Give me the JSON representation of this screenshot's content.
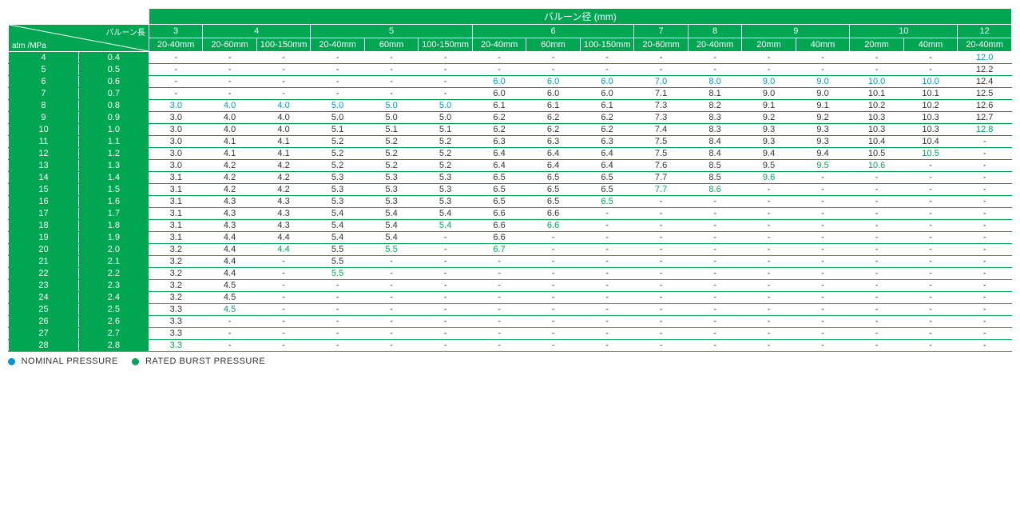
{
  "colors": {
    "header_bg": "#00a651",
    "header_fg": "#ffffff",
    "data_fg": "#333333",
    "nominal": "#0099cc",
    "rated_burst": "#00a651",
    "row_border": "#00a651"
  },
  "title": "バルーン径 (mm)",
  "diag_top": "バルーン長",
  "diag_bottom": "atm /MPa",
  "diameter_groups": [
    {
      "label": "3",
      "cols": [
        "20-40mm"
      ]
    },
    {
      "label": "4",
      "cols": [
        "20-60mm",
        "100-150mm"
      ]
    },
    {
      "label": "5",
      "cols": [
        "20-40mm",
        "60mm",
        "100-150mm"
      ]
    },
    {
      "label": "6",
      "cols": [
        "20-40mm",
        "60mm",
        "100-150mm"
      ]
    },
    {
      "label": "7",
      "cols": [
        "20-60mm"
      ]
    },
    {
      "label": "8",
      "cols": [
        "20-40mm"
      ]
    },
    {
      "label": "9",
      "cols": [
        "20mm",
        "40mm"
      ]
    },
    {
      "label": "10",
      "cols": [
        "20mm",
        "40mm"
      ]
    },
    {
      "label": "12",
      "cols": [
        "20-40mm"
      ]
    }
  ],
  "rows": [
    {
      "atm": "4",
      "mpa": "0.4",
      "cells": [
        [
          "-"
        ],
        [
          "-"
        ],
        [
          "-"
        ],
        [
          "-"
        ],
        [
          "-"
        ],
        [
          "-"
        ],
        [
          "-"
        ],
        [
          "-"
        ],
        [
          "-"
        ],
        [
          "-"
        ],
        [
          "-"
        ],
        [
          "-"
        ],
        [
          "-"
        ],
        [
          "-"
        ],
        [
          "-"
        ],
        [
          "12.0",
          "nom"
        ]
      ]
    },
    {
      "atm": "5",
      "mpa": "0.5",
      "cells": [
        [
          "-"
        ],
        [
          "-"
        ],
        [
          "-"
        ],
        [
          "-"
        ],
        [
          "-"
        ],
        [
          "-"
        ],
        [
          "-"
        ],
        [
          "-"
        ],
        [
          "-"
        ],
        [
          "-"
        ],
        [
          "-"
        ],
        [
          "-"
        ],
        [
          "-"
        ],
        [
          "-"
        ],
        [
          "-"
        ],
        [
          "12.2"
        ]
      ]
    },
    {
      "atm": "6",
      "mpa": "0.6",
      "cells": [
        [
          "-"
        ],
        [
          "-"
        ],
        [
          "-"
        ],
        [
          "-"
        ],
        [
          "-"
        ],
        [
          "-"
        ],
        [
          "6.0",
          "nom"
        ],
        [
          "6.0",
          "nom"
        ],
        [
          "6.0",
          "nom"
        ],
        [
          "7.0",
          "nom"
        ],
        [
          "8.0",
          "nom"
        ],
        [
          "9.0",
          "nom"
        ],
        [
          "9.0",
          "nom"
        ],
        [
          "10.0",
          "nom"
        ],
        [
          "10.0",
          "nom"
        ],
        [
          "12.4"
        ]
      ]
    },
    {
      "atm": "7",
      "mpa": "0.7",
      "cells": [
        [
          "-"
        ],
        [
          "-"
        ],
        [
          "-"
        ],
        [
          "-"
        ],
        [
          "-"
        ],
        [
          "-"
        ],
        [
          "6.0"
        ],
        [
          "6.0"
        ],
        [
          "6.0"
        ],
        [
          "7.1"
        ],
        [
          "8.1"
        ],
        [
          "9.0"
        ],
        [
          "9.0"
        ],
        [
          "10.1"
        ],
        [
          "10.1"
        ],
        [
          "12.5"
        ]
      ]
    },
    {
      "atm": "8",
      "mpa": "0.8",
      "cells": [
        [
          "3.0",
          "nom"
        ],
        [
          "4.0",
          "nom"
        ],
        [
          "4.0",
          "nom"
        ],
        [
          "5.0",
          "nom"
        ],
        [
          "5.0",
          "nom"
        ],
        [
          "5.0",
          "nom"
        ],
        [
          "6.1"
        ],
        [
          "6.1"
        ],
        [
          "6.1"
        ],
        [
          "7.3"
        ],
        [
          "8.2"
        ],
        [
          "9.1"
        ],
        [
          "9.1"
        ],
        [
          "10.2"
        ],
        [
          "10.2"
        ],
        [
          "12.6"
        ]
      ]
    },
    {
      "atm": "9",
      "mpa": "0.9",
      "cells": [
        [
          "3.0"
        ],
        [
          "4.0"
        ],
        [
          "4.0"
        ],
        [
          "5.0"
        ],
        [
          "5.0"
        ],
        [
          "5.0"
        ],
        [
          "6.2"
        ],
        [
          "6.2"
        ],
        [
          "6.2"
        ],
        [
          "7.3"
        ],
        [
          "8.3"
        ],
        [
          "9.2"
        ],
        [
          "9.2"
        ],
        [
          "10.3"
        ],
        [
          "10.3"
        ],
        [
          "12.7"
        ]
      ]
    },
    {
      "atm": "10",
      "mpa": "1.0",
      "cells": [
        [
          "3.0"
        ],
        [
          "4.0"
        ],
        [
          "4.0"
        ],
        [
          "5.1"
        ],
        [
          "5.1"
        ],
        [
          "5.1"
        ],
        [
          "6.2"
        ],
        [
          "6.2"
        ],
        [
          "6.2"
        ],
        [
          "7.4"
        ],
        [
          "8.3"
        ],
        [
          "9.3"
        ],
        [
          "9.3"
        ],
        [
          "10.3"
        ],
        [
          "10.3"
        ],
        [
          "12.8",
          "rbp"
        ]
      ]
    },
    {
      "atm": "11",
      "mpa": "1.1",
      "cells": [
        [
          "3.0"
        ],
        [
          "4.1"
        ],
        [
          "4.1"
        ],
        [
          "5.2"
        ],
        [
          "5.2"
        ],
        [
          "5.2"
        ],
        [
          "6.3"
        ],
        [
          "6.3"
        ],
        [
          "6.3"
        ],
        [
          "7.5"
        ],
        [
          "8.4"
        ],
        [
          "9.3"
        ],
        [
          "9.3"
        ],
        [
          "10.4"
        ],
        [
          "10.4"
        ],
        [
          "-"
        ]
      ]
    },
    {
      "atm": "12",
      "mpa": "1.2",
      "cells": [
        [
          "3.0"
        ],
        [
          "4.1"
        ],
        [
          "4.1"
        ],
        [
          "5.2"
        ],
        [
          "5.2"
        ],
        [
          "5.2"
        ],
        [
          "6.4"
        ],
        [
          "6.4"
        ],
        [
          "6.4"
        ],
        [
          "7.5"
        ],
        [
          "8.4"
        ],
        [
          "9.4"
        ],
        [
          "9.4"
        ],
        [
          "10.5"
        ],
        [
          "10.5",
          "rbp"
        ],
        [
          "-"
        ]
      ]
    },
    {
      "atm": "13",
      "mpa": "1.3",
      "cells": [
        [
          "3.0"
        ],
        [
          "4.2"
        ],
        [
          "4.2"
        ],
        [
          "5.2"
        ],
        [
          "5.2"
        ],
        [
          "5.2"
        ],
        [
          "6.4"
        ],
        [
          "6.4"
        ],
        [
          "6.4"
        ],
        [
          "7.6"
        ],
        [
          "8.5"
        ],
        [
          "9.5"
        ],
        [
          "9.5",
          "rbp"
        ],
        [
          "10.6",
          "rbp"
        ],
        [
          "-"
        ],
        [
          "-"
        ]
      ]
    },
    {
      "atm": "14",
      "mpa": "1.4",
      "cells": [
        [
          "3.1"
        ],
        [
          "4.2"
        ],
        [
          "4.2"
        ],
        [
          "5.3"
        ],
        [
          "5.3"
        ],
        [
          "5.3"
        ],
        [
          "6.5"
        ],
        [
          "6.5"
        ],
        [
          "6.5"
        ],
        [
          "7.7"
        ],
        [
          "8.5"
        ],
        [
          "9.6",
          "rbp"
        ],
        [
          "-"
        ],
        [
          "-"
        ],
        [
          "-"
        ],
        [
          "-"
        ]
      ]
    },
    {
      "atm": "15",
      "mpa": "1.5",
      "cells": [
        [
          "3.1"
        ],
        [
          "4.2"
        ],
        [
          "4.2"
        ],
        [
          "5.3"
        ],
        [
          "5.3"
        ],
        [
          "5.3"
        ],
        [
          "6.5"
        ],
        [
          "6.5"
        ],
        [
          "6.5"
        ],
        [
          "7.7",
          "rbp"
        ],
        [
          "8.6",
          "rbp"
        ],
        [
          "-"
        ],
        [
          "-"
        ],
        [
          "-"
        ],
        [
          "-"
        ],
        [
          "-"
        ]
      ]
    },
    {
      "atm": "16",
      "mpa": "1.6",
      "cells": [
        [
          "3.1"
        ],
        [
          "4.3"
        ],
        [
          "4.3"
        ],
        [
          "5.3"
        ],
        [
          "5.3"
        ],
        [
          "5.3"
        ],
        [
          "6.5"
        ],
        [
          "6.5"
        ],
        [
          "6.5",
          "rbp"
        ],
        [
          "-"
        ],
        [
          "-"
        ],
        [
          "-"
        ],
        [
          "-"
        ],
        [
          "-"
        ],
        [
          "-"
        ],
        [
          "-"
        ]
      ]
    },
    {
      "atm": "17",
      "mpa": "1.7",
      "cells": [
        [
          "3.1"
        ],
        [
          "4.3"
        ],
        [
          "4.3"
        ],
        [
          "5.4"
        ],
        [
          "5.4"
        ],
        [
          "5.4"
        ],
        [
          "6.6"
        ],
        [
          "6.6"
        ],
        [
          "-"
        ],
        [
          "-"
        ],
        [
          "-"
        ],
        [
          "-"
        ],
        [
          "-"
        ],
        [
          "-"
        ],
        [
          "-"
        ],
        [
          "-"
        ]
      ]
    },
    {
      "atm": "18",
      "mpa": "1.8",
      "cells": [
        [
          "3.1"
        ],
        [
          "4.3"
        ],
        [
          "4.3"
        ],
        [
          "5.4"
        ],
        [
          "5.4"
        ],
        [
          "5.4",
          "rbp"
        ],
        [
          "6.6"
        ],
        [
          "6.6",
          "rbp"
        ],
        [
          "-"
        ],
        [
          "-"
        ],
        [
          "-"
        ],
        [
          "-"
        ],
        [
          "-"
        ],
        [
          "-"
        ],
        [
          "-"
        ],
        [
          "-"
        ]
      ]
    },
    {
      "atm": "19",
      "mpa": "1.9",
      "cells": [
        [
          "3.1"
        ],
        [
          "4.4"
        ],
        [
          "4.4"
        ],
        [
          "5.4"
        ],
        [
          "5.4"
        ],
        [
          "-"
        ],
        [
          "6.6"
        ],
        [
          "-"
        ],
        [
          "-"
        ],
        [
          "-"
        ],
        [
          "-"
        ],
        [
          "-"
        ],
        [
          "-"
        ],
        [
          "-"
        ],
        [
          "-"
        ],
        [
          "-"
        ]
      ]
    },
    {
      "atm": "20",
      "mpa": "2.0",
      "cells": [
        [
          "3.2"
        ],
        [
          "4.4"
        ],
        [
          "4.4",
          "rbp"
        ],
        [
          "5.5"
        ],
        [
          "5.5",
          "rbp"
        ],
        [
          "-"
        ],
        [
          "6.7",
          "rbp"
        ],
        [
          "-"
        ],
        [
          "-"
        ],
        [
          "-"
        ],
        [
          "-"
        ],
        [
          "-"
        ],
        [
          "-"
        ],
        [
          "-"
        ],
        [
          "-"
        ],
        [
          "-"
        ]
      ]
    },
    {
      "atm": "21",
      "mpa": "2.1",
      "cells": [
        [
          "3.2"
        ],
        [
          "4.4"
        ],
        [
          "-"
        ],
        [
          "5.5"
        ],
        [
          "-"
        ],
        [
          "-"
        ],
        [
          "-"
        ],
        [
          "-"
        ],
        [
          "-"
        ],
        [
          "-"
        ],
        [
          "-"
        ],
        [
          "-"
        ],
        [
          "-"
        ],
        [
          "-"
        ],
        [
          "-"
        ],
        [
          "-"
        ]
      ]
    },
    {
      "atm": "22",
      "mpa": "2.2",
      "cells": [
        [
          "3.2"
        ],
        [
          "4.4"
        ],
        [
          "-"
        ],
        [
          "5.5",
          "rbp"
        ],
        [
          "-"
        ],
        [
          "-"
        ],
        [
          "-"
        ],
        [
          "-"
        ],
        [
          "-"
        ],
        [
          "-"
        ],
        [
          "-"
        ],
        [
          "-"
        ],
        [
          "-"
        ],
        [
          "-"
        ],
        [
          "-"
        ],
        [
          "-"
        ]
      ]
    },
    {
      "atm": "23",
      "mpa": "2.3",
      "cells": [
        [
          "3.2"
        ],
        [
          "4.5"
        ],
        [
          "-"
        ],
        [
          "-"
        ],
        [
          "-"
        ],
        [
          "-"
        ],
        [
          "-"
        ],
        [
          "-"
        ],
        [
          "-"
        ],
        [
          "-"
        ],
        [
          "-"
        ],
        [
          "-"
        ],
        [
          "-"
        ],
        [
          "-"
        ],
        [
          "-"
        ],
        [
          "-"
        ]
      ]
    },
    {
      "atm": "24",
      "mpa": "2.4",
      "cells": [
        [
          "3.2"
        ],
        [
          "4.5"
        ],
        [
          "-"
        ],
        [
          "-"
        ],
        [
          "-"
        ],
        [
          "-"
        ],
        [
          "-"
        ],
        [
          "-"
        ],
        [
          "-"
        ],
        [
          "-"
        ],
        [
          "-"
        ],
        [
          "-"
        ],
        [
          "-"
        ],
        [
          "-"
        ],
        [
          "-"
        ],
        [
          "-"
        ]
      ]
    },
    {
      "atm": "25",
      "mpa": "2.5",
      "cells": [
        [
          "3.3"
        ],
        [
          "4.5",
          "rbp"
        ],
        [
          "-"
        ],
        [
          "-"
        ],
        [
          "-"
        ],
        [
          "-"
        ],
        [
          "-"
        ],
        [
          "-"
        ],
        [
          "-"
        ],
        [
          "-"
        ],
        [
          "-"
        ],
        [
          "-"
        ],
        [
          "-"
        ],
        [
          "-"
        ],
        [
          "-"
        ],
        [
          "-"
        ]
      ]
    },
    {
      "atm": "26",
      "mpa": "2.6",
      "cells": [
        [
          "3.3"
        ],
        [
          "-"
        ],
        [
          "-"
        ],
        [
          "-"
        ],
        [
          "-"
        ],
        [
          "-"
        ],
        [
          "-"
        ],
        [
          "-"
        ],
        [
          "-"
        ],
        [
          "-"
        ],
        [
          "-"
        ],
        [
          "-"
        ],
        [
          "-"
        ],
        [
          "-"
        ],
        [
          "-"
        ],
        [
          "-"
        ]
      ]
    },
    {
      "atm": "27",
      "mpa": "2.7",
      "cells": [
        [
          "3.3"
        ],
        [
          "-"
        ],
        [
          "-"
        ],
        [
          "-"
        ],
        [
          "-"
        ],
        [
          "-"
        ],
        [
          "-"
        ],
        [
          "-"
        ],
        [
          "-"
        ],
        [
          "-"
        ],
        [
          "-"
        ],
        [
          "-"
        ],
        [
          "-"
        ],
        [
          "-"
        ],
        [
          "-"
        ],
        [
          "-"
        ]
      ]
    },
    {
      "atm": "28",
      "mpa": "2.8",
      "cells": [
        [
          "3.3",
          "rbp"
        ],
        [
          "-"
        ],
        [
          "-"
        ],
        [
          "-"
        ],
        [
          "-"
        ],
        [
          "-"
        ],
        [
          "-"
        ],
        [
          "-"
        ],
        [
          "-"
        ],
        [
          "-"
        ],
        [
          "-"
        ],
        [
          "-"
        ],
        [
          "-"
        ],
        [
          "-"
        ],
        [
          "-"
        ],
        [
          "-"
        ]
      ]
    }
  ],
  "legend": {
    "nominal": "NOMINAL PRESSURE",
    "rated_burst": "RATED BURST PRESSURE"
  }
}
